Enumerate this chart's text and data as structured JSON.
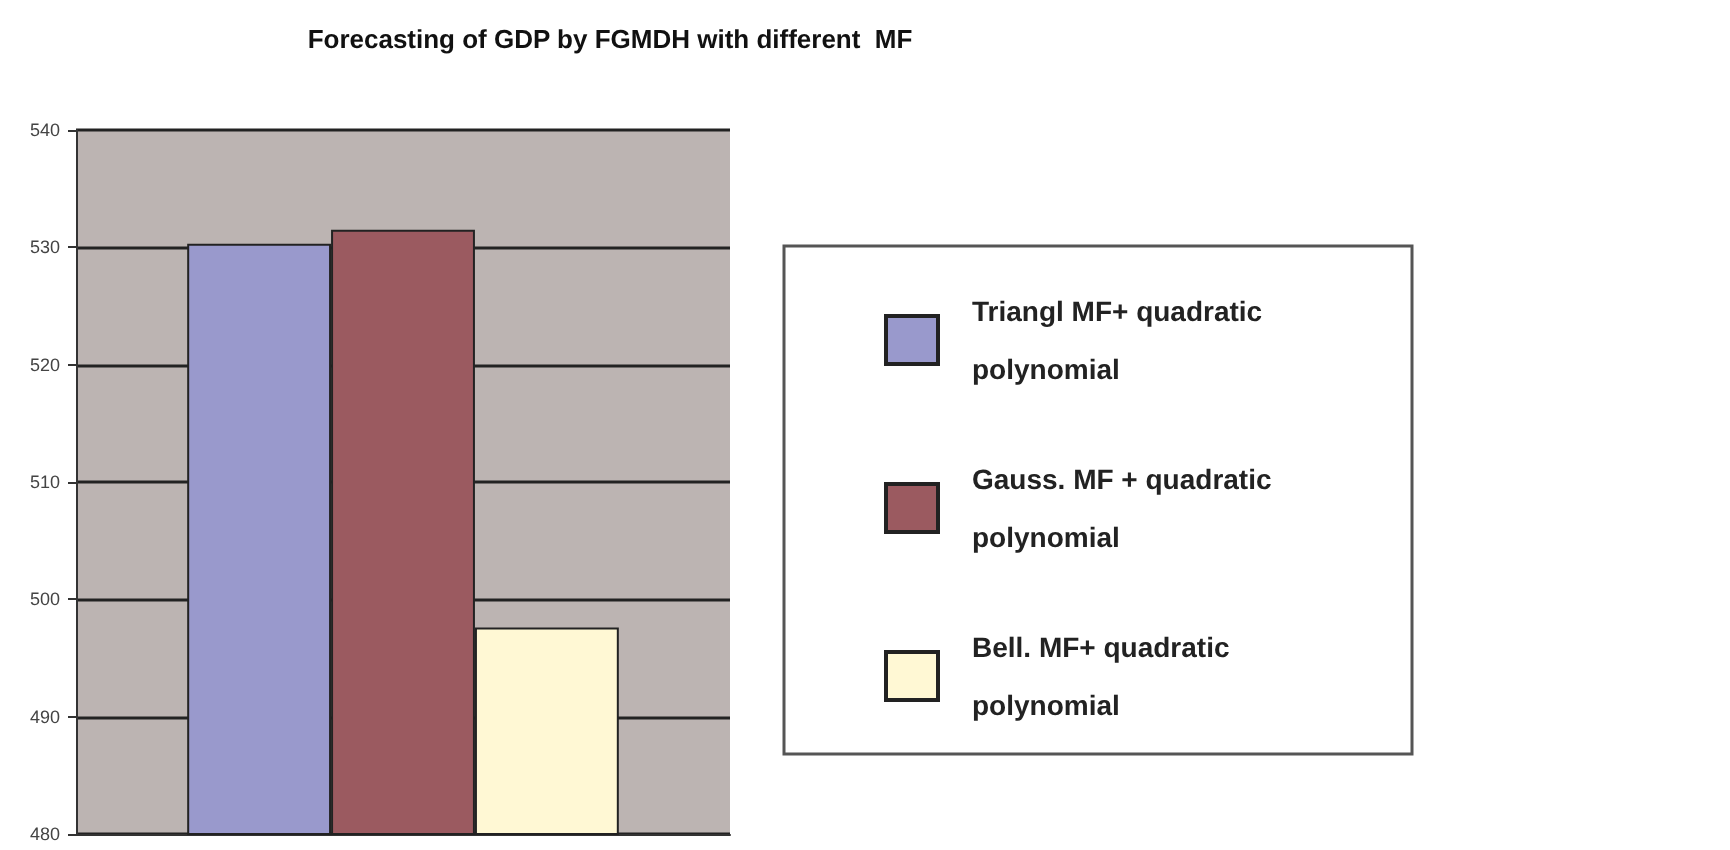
{
  "chart_data": {
    "type": "bar",
    "title": "Forecasting of GDP by FGMDH with different  MF",
    "categories": [
      null
    ],
    "series": [
      {
        "name": "Triangl MF+ quadratic polynomial",
        "color": "#9999cc",
        "values": [
          530.3
        ]
      },
      {
        "name": "Gauss. MF + quadratic polynomial",
        "color": "#9b5a60",
        "values": [
          531.5
        ]
      },
      {
        "name": "Bell. MF+ quadratic polynomial",
        "color": "#fff8d4",
        "values": [
          497.6
        ]
      }
    ],
    "ylim": [
      480,
      540
    ],
    "yticks": [
      480,
      490,
      500,
      510,
      520,
      530,
      540
    ],
    "grid": "y",
    "legend": "right"
  }
}
